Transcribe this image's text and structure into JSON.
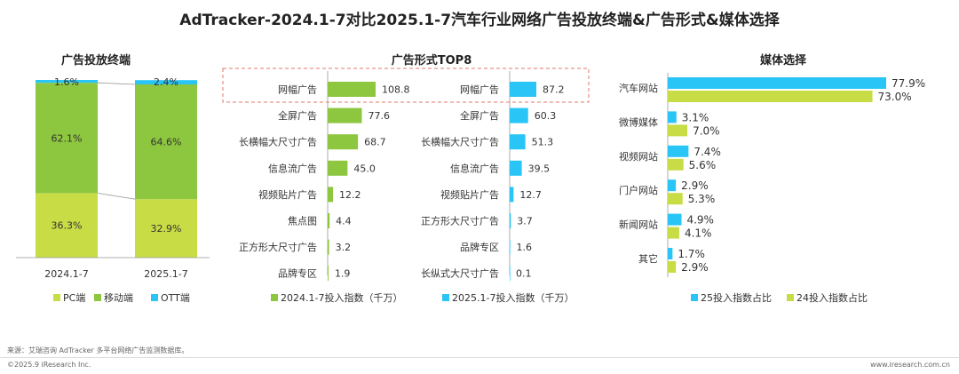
{
  "title": "AdTracker-2024.1-7对比2025.1-7汽车行业网络广告投放终端&广告形式&媒体选择",
  "colors": {
    "green": "#8dc63f",
    "lightgreen": "#c8dc46",
    "cyan": "#29c5f6",
    "text": "#333333"
  },
  "footer": {
    "source": "来源：艾瑞咨询 AdTracker 多平台网络广告监测数据库。",
    "copyright": "©2025.9 iResearch Inc.",
    "url": "www.iresearch.com.cn"
  },
  "chart_data": [
    {
      "type": "bar",
      "stacked": true,
      "title": "广告投放终端",
      "categories": [
        "2024.1-7",
        "2025.1-7"
      ],
      "series": [
        {
          "name": "PC端",
          "values": [
            36.3,
            32.9
          ],
          "labels": [
            "36.3%",
            "32.9%"
          ],
          "color": "#c8dc46"
        },
        {
          "name": "移动端",
          "values": [
            62.1,
            64.6
          ],
          "labels": [
            "62.1%",
            "64.6%"
          ],
          "color": "#8dc63f"
        },
        {
          "name": "OTT端",
          "values": [
            1.6,
            2.4
          ],
          "labels": [
            "1.6%",
            "2.4%"
          ],
          "color": "#29c5f6"
        }
      ],
      "legend": "bottom"
    },
    {
      "type": "bar",
      "orientation": "horizontal",
      "title": "广告形式TOP8",
      "panels": [
        {
          "name": "2024.1-7投入指数（千万）",
          "color": "#8dc63f",
          "categories": [
            "网幅广告",
            "全屏广告",
            "长横幅大尺寸广告",
            "信息流广告",
            "视频贴片广告",
            "焦点图",
            "正方形大尺寸广告",
            "品牌专区"
          ],
          "values": [
            108.8,
            77.6,
            68.7,
            45.0,
            12.2,
            4.4,
            3.2,
            1.9
          ],
          "labels": [
            "108.8",
            "77.6",
            "68.7",
            "45.0",
            "12.2",
            "4.4",
            "3.2",
            "1.9"
          ]
        },
        {
          "name": "2025.1-7投入指数（千万）",
          "color": "#29c5f6",
          "categories": [
            "网幅广告",
            "全屏广告",
            "长横幅大尺寸广告",
            "信息流广告",
            "视频贴片广告",
            "正方形大尺寸广告",
            "品牌专区",
            "长纵式大尺寸广告"
          ],
          "values": [
            87.2,
            60.3,
            51.3,
            39.5,
            12.7,
            3.7,
            1.6,
            0.1
          ],
          "labels": [
            "87.2",
            "60.3",
            "51.3",
            "39.5",
            "12.7",
            "3.7",
            "1.6",
            "0.1"
          ]
        }
      ],
      "legend": "bottom",
      "highlight": "网幅广告"
    },
    {
      "type": "bar",
      "orientation": "horizontal",
      "title": "媒体选择",
      "categories": [
        "汽车网站",
        "微博媒体",
        "视频网站",
        "门户网站",
        "新闻网站",
        "其它"
      ],
      "series": [
        {
          "name": "25投入指数占比",
          "values": [
            77.9,
            3.1,
            7.4,
            2.9,
            4.9,
            1.7
          ],
          "labels": [
            "77.9%",
            "3.1%",
            "7.4%",
            "2.9%",
            "4.9%",
            "1.7%"
          ],
          "color": "#29c5f6"
        },
        {
          "name": "24投入指数占比",
          "values": [
            73.0,
            7.0,
            5.6,
            5.3,
            4.1,
            2.9
          ],
          "labels": [
            "73.0%",
            "7.0%",
            "5.6%",
            "5.3%",
            "4.1%",
            "2.9%"
          ],
          "color": "#c8dc46"
        }
      ],
      "legend": "bottom"
    }
  ]
}
